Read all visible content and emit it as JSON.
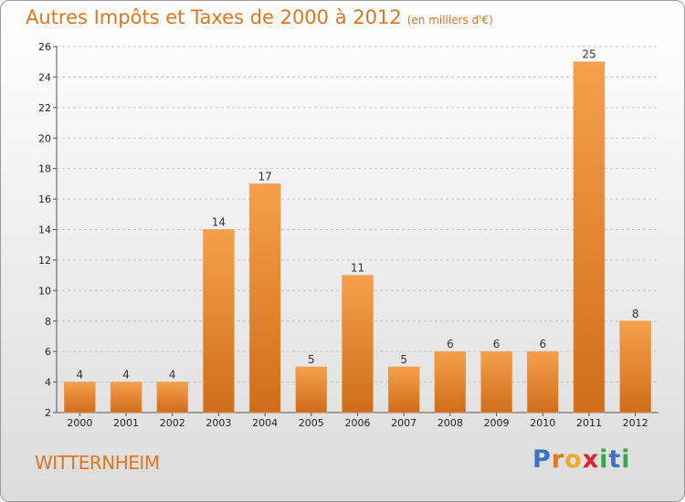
{
  "title": "Autres Impôts et Taxes de 2000 à 2012",
  "unit": "(en milliers d'€)",
  "commune": "WITTERNHEIM",
  "logo": {
    "letters": [
      "P",
      "r",
      "o",
      "x",
      "i",
      "t",
      "i"
    ],
    "colors": [
      "#3a73c4",
      "#e0761f",
      "#f2a72b",
      "#d9262c",
      "#3aa84a",
      "#3a73c4",
      "#3aa84a"
    ]
  },
  "colors": {
    "title": "#e0761f",
    "bar_light": "#f6a04c",
    "bar_dark": "#cf6d1a",
    "grid": "#c8c8c8"
  },
  "chart_data": {
    "type": "bar",
    "title": "Autres Impôts et Taxes de 2000 à 2012",
    "subtitle": "(en milliers d'€)",
    "xlabel": "",
    "ylabel": "",
    "categories": [
      "2000",
      "2001",
      "2002",
      "2003",
      "2004",
      "2005",
      "2006",
      "2007",
      "2008",
      "2009",
      "2010",
      "2011",
      "2012"
    ],
    "values": [
      4,
      4,
      4,
      14,
      17,
      5,
      11,
      5,
      6,
      6,
      6,
      25,
      8
    ],
    "ylim": [
      2,
      26
    ],
    "yticks": [
      2,
      4,
      6,
      8,
      10,
      12,
      14,
      16,
      18,
      20,
      22,
      24,
      26
    ],
    "grid": true
  }
}
